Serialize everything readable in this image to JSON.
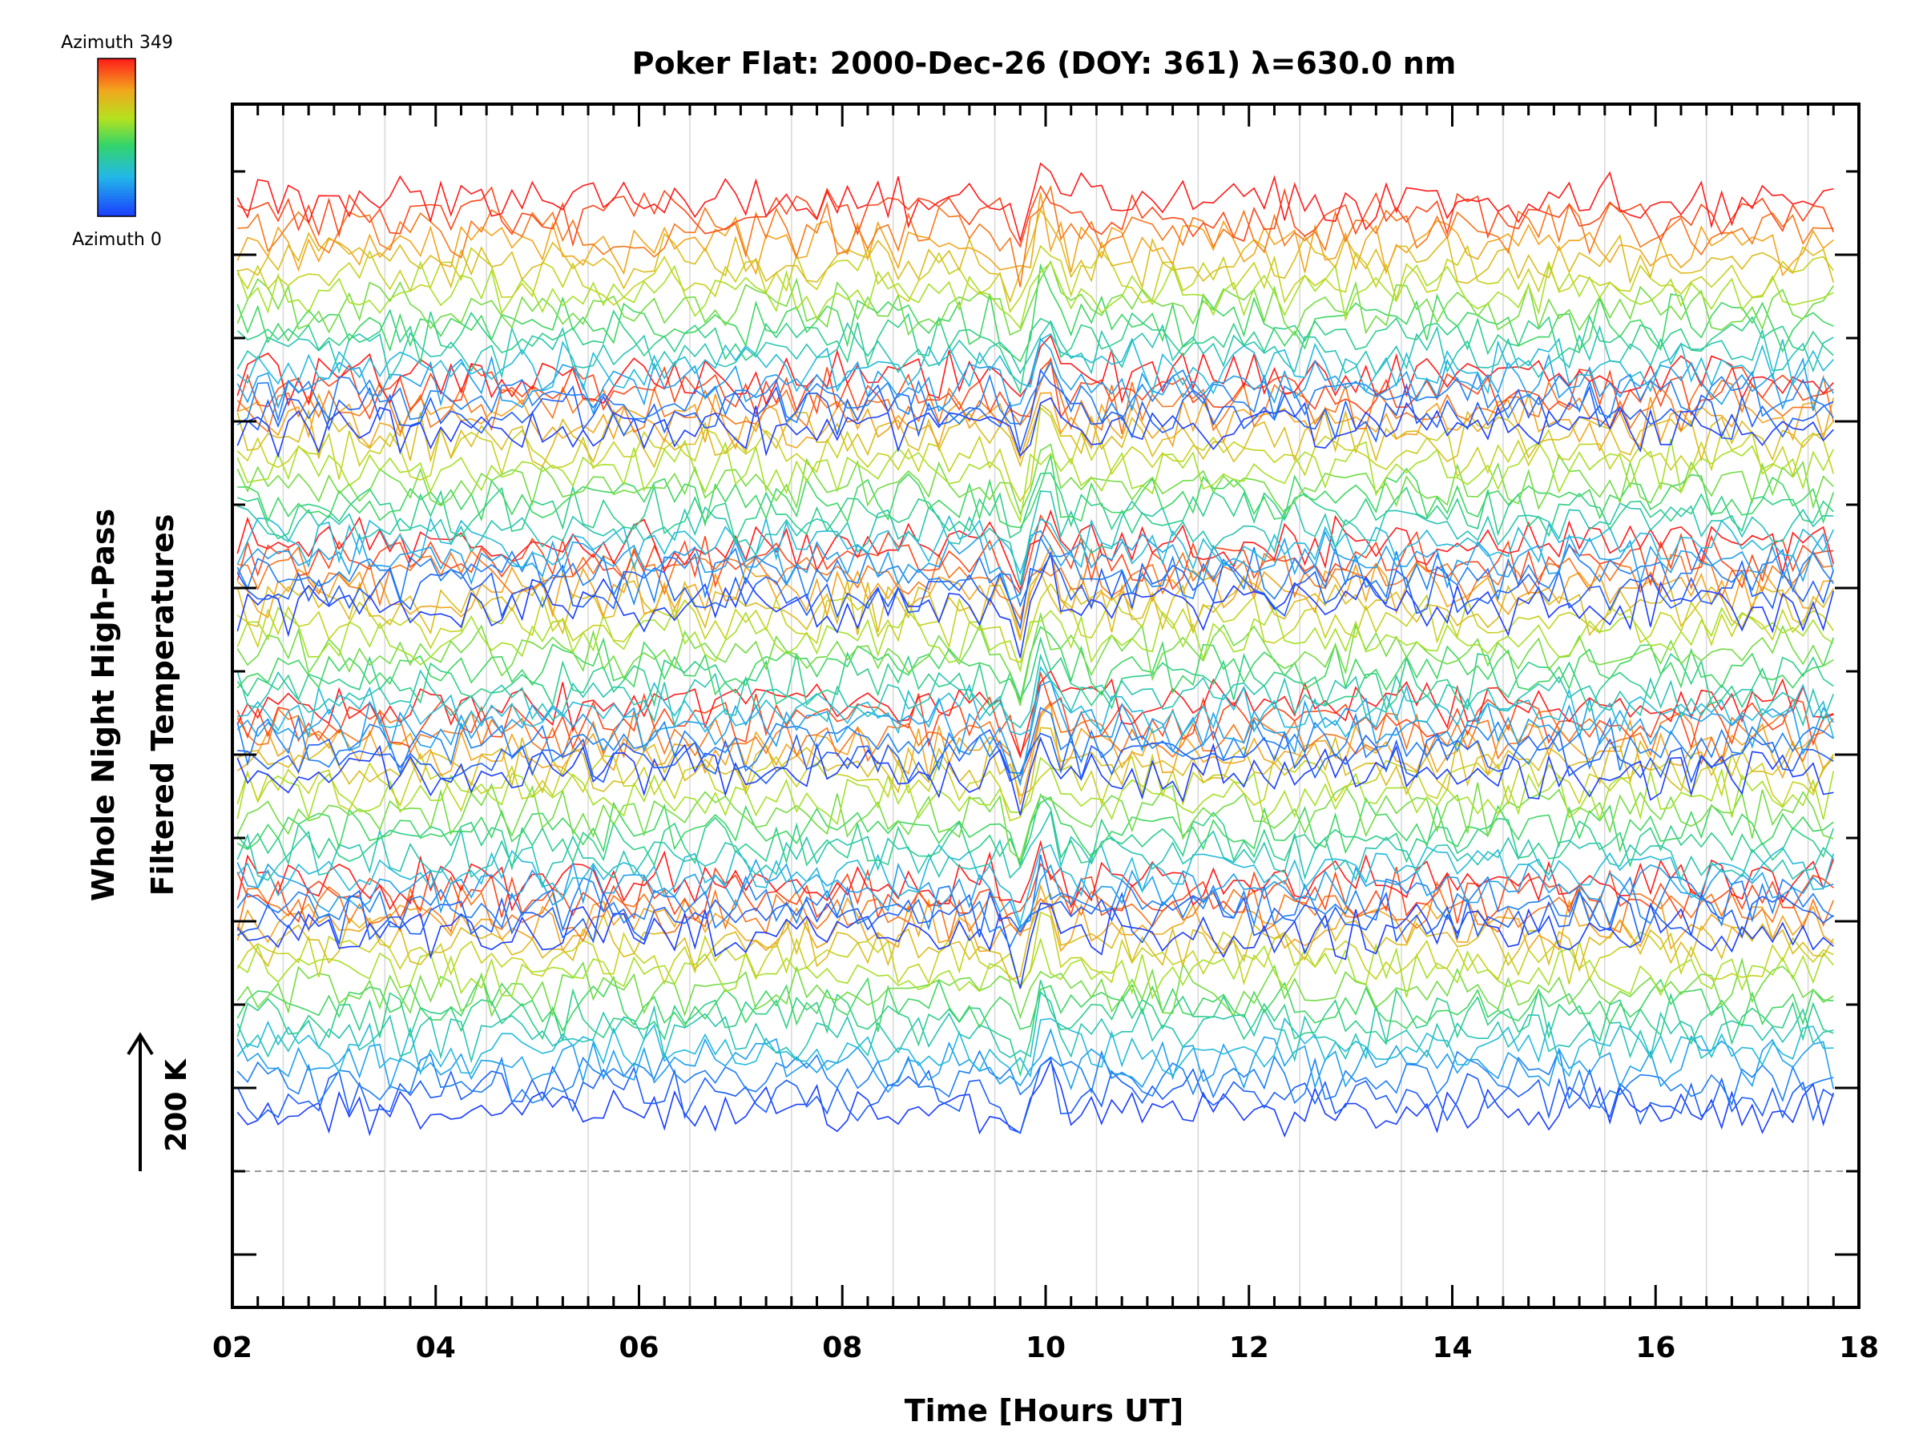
{
  "chart_data": {
    "type": "line",
    "title": "Poker Flat: 2000-Dec-26 (DOY: 361) λ=630.0 nm",
    "xlabel": "Time [Hours UT]",
    "ylabel_line1": "Whole Night High-Pass",
    "ylabel_line2": "Filtered Temperatures",
    "xlim": [
      2,
      18
    ],
    "x_ticks": [
      "02",
      "04",
      "06",
      "08",
      "10",
      "12",
      "14",
      "16",
      "18"
    ],
    "colorbar": {
      "top_label": "Azimuth 349",
      "bottom_label": "Azimuth 0",
      "min": 0,
      "max": 349
    },
    "scale_bar_label": "200 K",
    "scale_bar_kelvin": 200,
    "grid": "vertical-light",
    "baseline": "dashed",
    "series_groups": 5,
    "series_per_group": 16,
    "time_step_hours": 0.1,
    "time_start": 2.05,
    "time_end": 17.75
  }
}
